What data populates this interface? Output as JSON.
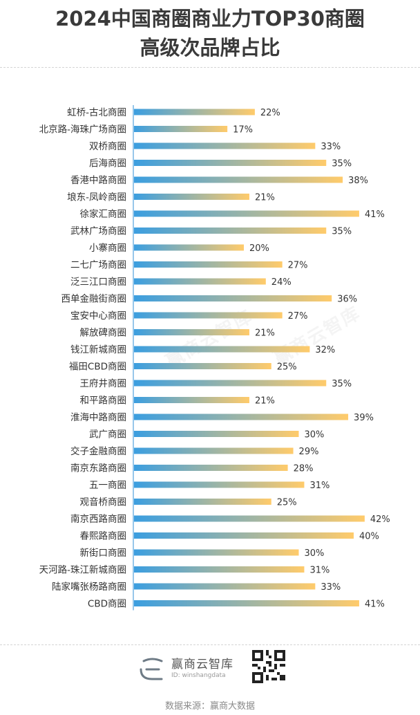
{
  "title_line1": "2024中国商圈商业力TOP30商圈",
  "title_line2": "高级次品牌占比",
  "footer": {
    "brand": "赢商云智库",
    "id_text": "ID: winshangdata",
    "source": "数据来源：赢商大数据",
    "watermark": "赢商云智库"
  },
  "colors": {
    "bar_start": "#3b9ee0",
    "bar_end": "#ffcb6b",
    "axis": "#2f8fd6"
  },
  "chart_data": {
    "type": "bar",
    "orientation": "horizontal",
    "title": "2024中国商圈商业力TOP30商圈高级次品牌占比",
    "categories": [
      "虹桥-古北商圈",
      "北京路-海珠广场商圈",
      "双桥商圈",
      "后海商圈",
      "香港中路商圈",
      "埌东-凤岭商圈",
      "徐家汇商圈",
      "武林广场商圈",
      "小寨商圈",
      "二七广场商圈",
      "泛三江口商圈",
      "西单金融街商圈",
      "宝安中心商圈",
      "解放碑商圈",
      "钱江新城商圈",
      "福田CBD商圈",
      "王府井商圈",
      "和平路商圈",
      "淮海中路商圈",
      "武广商圈",
      "交子金融商圈",
      "南京东路商圈",
      "五一商圈",
      "观音桥商圈",
      "南京西路商圈",
      "春熙路商圈",
      "新街口商圈",
      "天河路-珠江新城商圈",
      "陆家嘴张杨路商圈",
      "CBD商圈"
    ],
    "values": [
      22,
      17,
      33,
      35,
      38,
      21,
      41,
      35,
      20,
      27,
      24,
      36,
      27,
      21,
      32,
      25,
      35,
      21,
      39,
      30,
      29,
      28,
      31,
      25,
      42,
      40,
      30,
      31,
      33,
      41
    ],
    "value_labels": [
      "22%",
      "17%",
      "33%",
      "35%",
      "38%",
      "21%",
      "41%",
      "35%",
      "20%",
      "27%",
      "24%",
      "36%",
      "27%",
      "21%",
      "32%",
      "25%",
      "35%",
      "21%",
      "39%",
      "30%",
      "29%",
      "28%",
      "31%",
      "25%",
      "42%",
      "40%",
      "30%",
      "31%",
      "33%",
      "41%"
    ],
    "unit": "%",
    "xlim": [
      0,
      44
    ],
    "grid": false,
    "legend": "none"
  }
}
